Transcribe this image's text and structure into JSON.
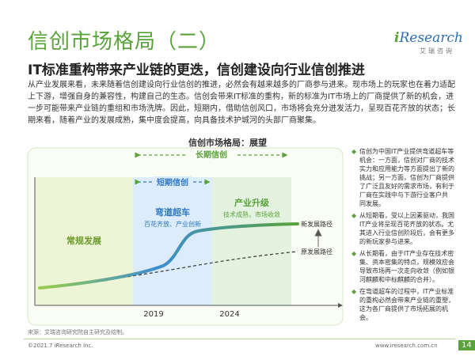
{
  "header": {
    "title": "信创市场格局（二）",
    "logo_prefix": "i",
    "logo_main": "Research",
    "logo_sub": "艾瑞咨询",
    "subtitle": "IT标准重构带来产业链的更迭，信创建设向行业信创推进"
  },
  "intro": "从产业发展来看，未来随着信创建设向行业信创的推进，必然会有越来越多的厂商参与进来。现市场上的玩家也在着力适配上下游，增强自身的兼容性，构建自己的生态。信创会带来IT标准的重构，新的标准为IT市场上的厂商提供了新的机会，进一步可能带来产业链的重组和市场洗牌。因此，短期内，借助信创风口，市场将会充分迸发活力，呈现百花齐放的状态；长期来看，随着产业的发展成熟，集中度会提高，向具备技术护城河的头部厂商聚集。",
  "chart": {
    "title": "信创市场格局：展望",
    "long_term_label": "长期信创",
    "short_term_label": "短期信创",
    "stage1_title": "常规发展",
    "stage2_title": "弯道超车",
    "stage2_desc": "百花齐放、产业创新",
    "stage3_title": "产业升级",
    "stage3_desc": "技术成熟，市场收敛",
    "new_path_label": "新发展路径",
    "old_path_label": "原发展路径",
    "year_1": "2019",
    "year_2": "2024",
    "colors": {
      "green": "#5aa33a",
      "blue": "#2f78c4",
      "stage1_bg": "#eef5d6",
      "stage2_bg": "#dcecfa",
      "stage3_bg": "#e4f3e0"
    }
  },
  "notes": [
    "信创为中国IT产业提供弯道超车等机会：一方面，信创对厂商的技术实力和应用能力等方面提出了新的挑战；另一方面，信创为厂商提供了广泛且友好的需求市场，有利于厂商在实践中与下游行业客户共 同发展。",
    "从短期看，受以上因素驱动，我国IT产业将呈现百花齐放的状态。尤其进入行业信创阶段后，会有更多的新玩家参与进来。",
    "从长期看，由于IT产业存在技术密集、资本密集的特点，规模效应会导致市场再一次走向收敛（例如银河麒麟和中标麒麟的合并）。",
    "在弯道超车的过程中，IT产业标准的重构必然会带来产业链的重塑，这为各厂商提供了市场拓展的机会。"
  ],
  "footer": {
    "source": "来源：艾瑞咨询研究院自主研究及绘制。",
    "copyright": "©2021.7 iResearch Inc.",
    "site": "www.iresearch.com.cn",
    "page": "14"
  }
}
